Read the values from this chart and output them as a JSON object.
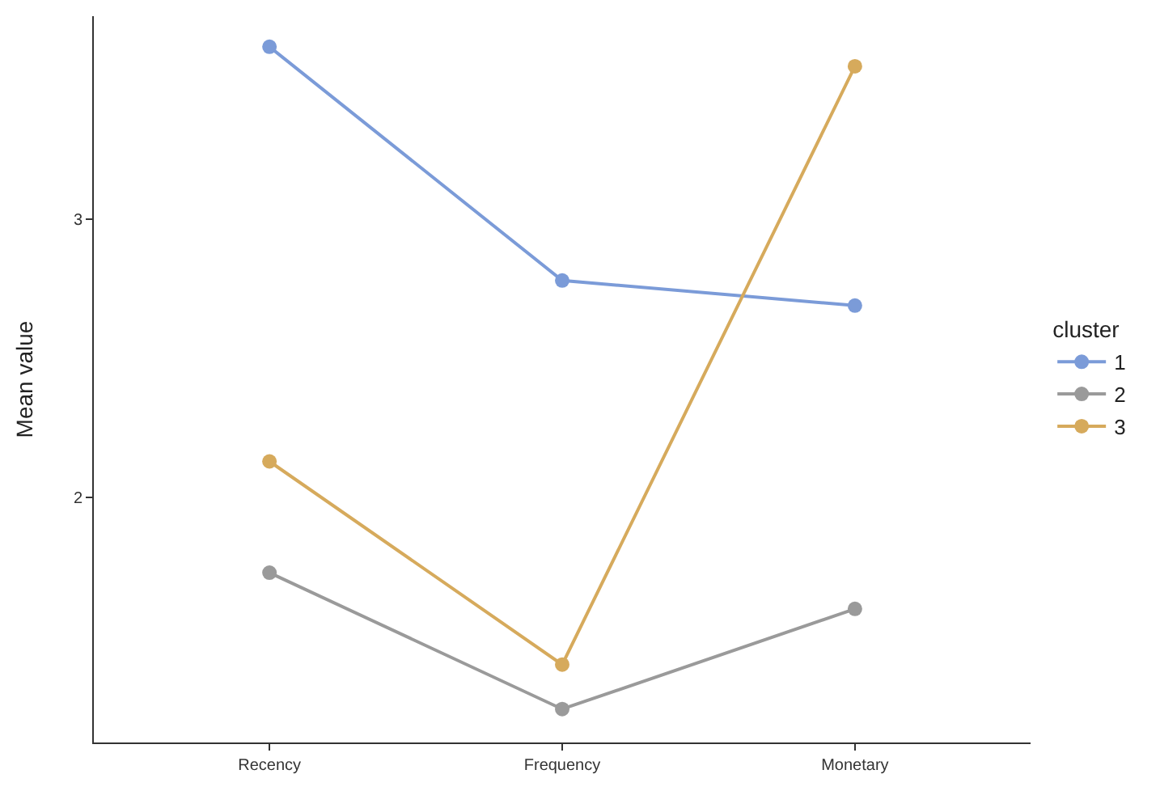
{
  "chart_data": {
    "type": "line",
    "ylabel": "Mean value",
    "legend_title": "cluster",
    "categories": [
      "Recency",
      "Frequency",
      "Monetary"
    ],
    "series": [
      {
        "name": "1",
        "color": "#7b9bd8",
        "values": [
          3.62,
          2.78,
          2.69
        ]
      },
      {
        "name": "2",
        "color": "#9a9a9a",
        "values": [
          1.73,
          1.24,
          1.6
        ]
      },
      {
        "name": "3",
        "color": "#d6aa5c",
        "values": [
          2.13,
          1.4,
          3.55
        ]
      }
    ],
    "ylim": [
      1.12,
      3.73
    ],
    "yticks": [
      2,
      3
    ],
    "grid": false,
    "legend": "right",
    "marker": "circle",
    "line_style": "solid"
  }
}
